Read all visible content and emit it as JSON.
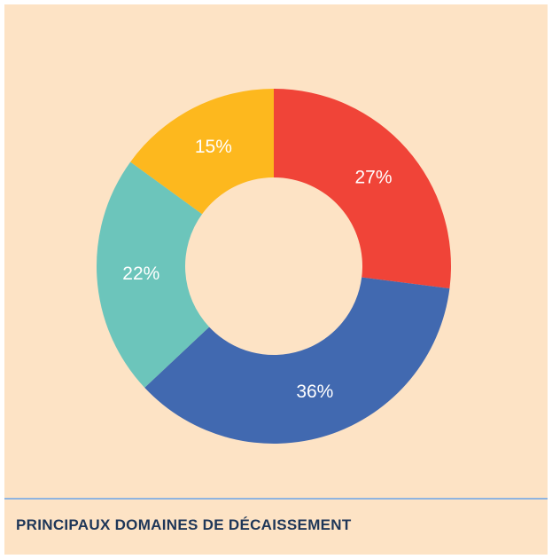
{
  "chart_data": {
    "type": "donut",
    "title": "PRINCIPAUX DOMAINES DE DÉCAISSEMENT",
    "values": [
      27,
      36,
      22,
      15
    ],
    "value_labels": [
      "27%",
      "36%",
      "22%",
      "15%"
    ],
    "colors": [
      "#f04438",
      "#4169b0",
      "#6cc5bb",
      "#fdb81e"
    ]
  }
}
